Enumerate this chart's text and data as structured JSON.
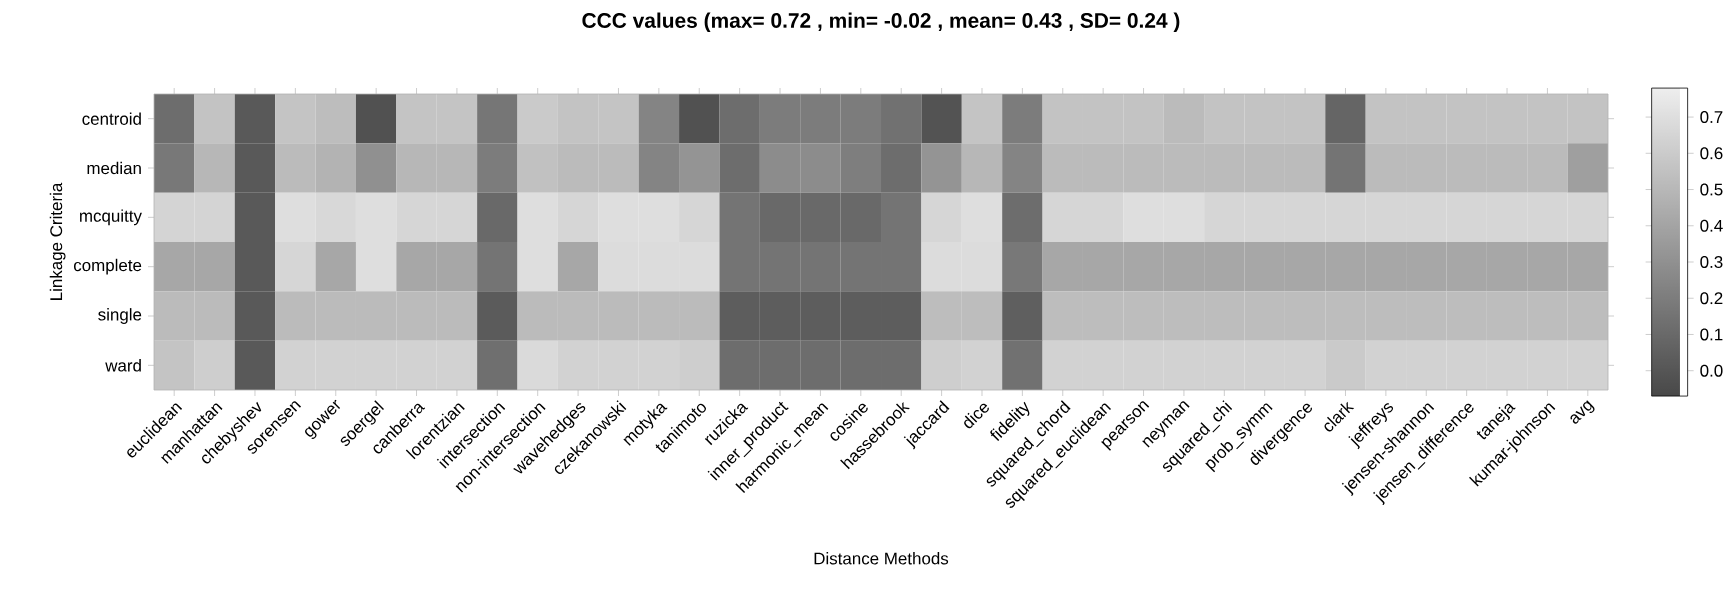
{
  "chart_data": {
    "type": "heatmap",
    "title": "CCC values (max= 0.72 , min= -0.02 , mean= 0.43 , SD= 0.24 )",
    "xlabel": "Distance Methods",
    "ylabel": "Linkage Criteria",
    "categories": [
      "euclidean",
      "manhattan",
      "chebyshev",
      "sorensen",
      "gower",
      "soergel",
      "canberra",
      "lorentzian",
      "intersection",
      "non-intersection",
      "wavehedges",
      "czekanowski",
      "motyka",
      "tanimoto",
      "ruzicka",
      "inner_product",
      "harmonic_mean",
      "cosine",
      "hassebrook",
      "jaccard",
      "dice",
      "fidelity",
      "squared_chord",
      "squared_euclidean",
      "pearson",
      "neyman",
      "squared_chi",
      "prob_symm",
      "divergence",
      "clark",
      "jeffreys",
      "jensen-shannon",
      "jensen_difference",
      "taneja",
      "kumar-johnson",
      "avg"
    ],
    "y_categories": [
      "centroid",
      "median",
      "mcquitty",
      "complete",
      "single",
      "ward"
    ],
    "cells": [
      [
        0.12,
        0.56,
        0.02,
        0.57,
        0.53,
        -0.02,
        0.57,
        0.57,
        0.17,
        0.6,
        0.56,
        0.57,
        0.24,
        -0.02,
        0.12,
        0.2,
        0.2,
        0.2,
        0.14,
        -0.01,
        0.57,
        0.2,
        0.56,
        0.56,
        0.56,
        0.52,
        0.56,
        0.56,
        0.56,
        0.08,
        0.56,
        0.56,
        0.56,
        0.56,
        0.56,
        0.56
      ],
      [
        0.18,
        0.5,
        0.02,
        0.52,
        0.48,
        0.3,
        0.5,
        0.5,
        0.2,
        0.55,
        0.52,
        0.52,
        0.24,
        0.32,
        0.12,
        0.28,
        0.28,
        0.21,
        0.12,
        0.32,
        0.5,
        0.24,
        0.52,
        0.52,
        0.52,
        0.52,
        0.52,
        0.52,
        0.52,
        0.16,
        0.52,
        0.52,
        0.52,
        0.52,
        0.52,
        0.38
      ],
      [
        0.65,
        0.65,
        0.02,
        0.7,
        0.67,
        0.7,
        0.66,
        0.66,
        0.1,
        0.7,
        0.66,
        0.7,
        0.7,
        0.66,
        0.16,
        0.1,
        0.1,
        0.1,
        0.16,
        0.66,
        0.7,
        0.12,
        0.66,
        0.66,
        0.7,
        0.7,
        0.66,
        0.66,
        0.66,
        0.66,
        0.66,
        0.66,
        0.66,
        0.66,
        0.66,
        0.66
      ],
      [
        0.42,
        0.42,
        0.02,
        0.66,
        0.42,
        0.7,
        0.42,
        0.42,
        0.16,
        0.7,
        0.42,
        0.69,
        0.69,
        0.69,
        0.16,
        0.16,
        0.16,
        0.16,
        0.16,
        0.69,
        0.69,
        0.18,
        0.42,
        0.42,
        0.42,
        0.42,
        0.42,
        0.42,
        0.42,
        0.42,
        0.42,
        0.42,
        0.42,
        0.42,
        0.42,
        0.42
      ],
      [
        0.52,
        0.52,
        0.02,
        0.52,
        0.52,
        0.52,
        0.52,
        0.52,
        0.03,
        0.52,
        0.52,
        0.52,
        0.52,
        0.52,
        0.04,
        0.04,
        0.04,
        0.04,
        0.04,
        0.53,
        0.53,
        0.05,
        0.53,
        0.53,
        0.53,
        0.53,
        0.53,
        0.53,
        0.53,
        0.53,
        0.53,
        0.53,
        0.53,
        0.53,
        0.53,
        0.53
      ],
      [
        0.57,
        0.62,
        0.02,
        0.64,
        0.64,
        0.64,
        0.64,
        0.64,
        0.13,
        0.68,
        0.64,
        0.64,
        0.64,
        0.62,
        0.12,
        0.12,
        0.12,
        0.12,
        0.12,
        0.62,
        0.64,
        0.14,
        0.64,
        0.64,
        0.64,
        0.64,
        0.64,
        0.64,
        0.64,
        0.6,
        0.64,
        0.64,
        0.64,
        0.64,
        0.64,
        0.64
      ]
    ],
    "clim": [
      -0.07,
      0.78
    ],
    "cticks": [
      {
        "value": 0,
        "label": "0.0"
      },
      0.1,
      0.2,
      0.3,
      0.4,
      0.5,
      0.6,
      0.7
    ]
  }
}
